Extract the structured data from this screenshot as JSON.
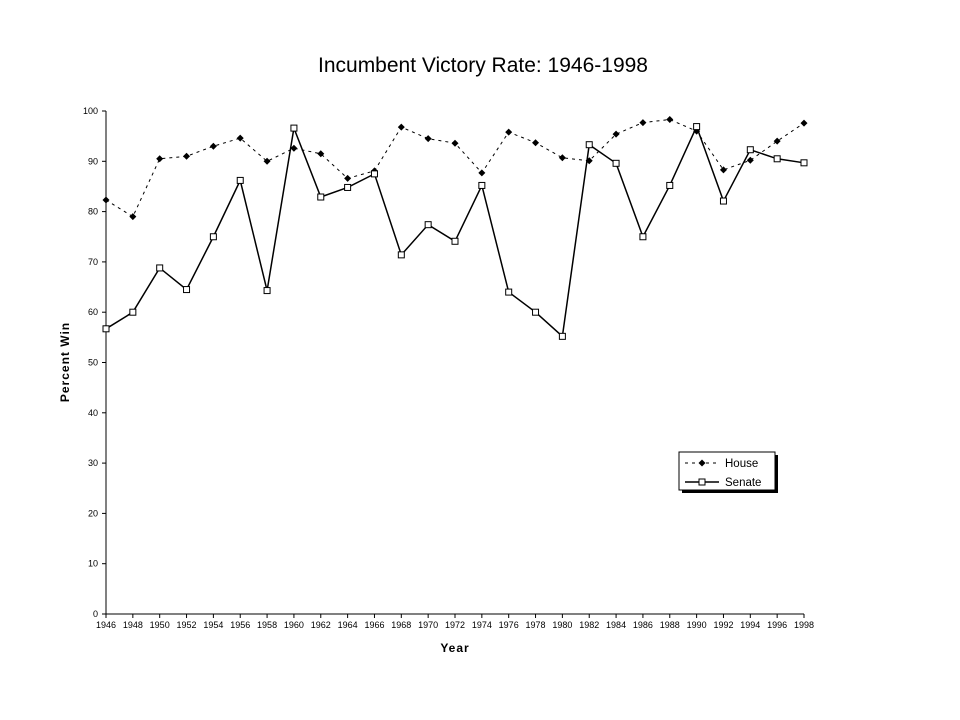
{
  "chart_data": {
    "type": "line",
    "title": "Incumbent Victory Rate: 1946-1998",
    "xlabel": "Year",
    "ylabel": "Percent Win",
    "x": [
      1946,
      1948,
      1950,
      1952,
      1954,
      1956,
      1958,
      1960,
      1962,
      1964,
      1966,
      1968,
      1970,
      1972,
      1974,
      1976,
      1978,
      1980,
      1982,
      1984,
      1986,
      1988,
      1990,
      1992,
      1994,
      1996,
      1998
    ],
    "ylim": [
      0,
      100
    ],
    "yticks": [
      0,
      10,
      20,
      30,
      40,
      50,
      60,
      70,
      80,
      90,
      100
    ],
    "grid": false,
    "legend_position": "bottom-right",
    "series": [
      {
        "name": "House",
        "style": "dashed",
        "marker": "diamond",
        "color": "#000000",
        "values": [
          82.3,
          79.0,
          90.5,
          91.0,
          93.0,
          94.6,
          90.0,
          92.6,
          91.5,
          86.6,
          88.1,
          96.8,
          94.5,
          93.6,
          87.7,
          95.8,
          93.7,
          90.7,
          90.1,
          95.4,
          97.7,
          98.3,
          96.0,
          88.3,
          90.2,
          94.0,
          97.6
        ]
      },
      {
        "name": "Senate",
        "style": "solid",
        "marker": "square",
        "color": "#000000",
        "values": [
          56.7,
          60.0,
          68.8,
          64.5,
          75.0,
          86.2,
          64.3,
          96.6,
          82.9,
          84.8,
          87.5,
          71.4,
          77.4,
          74.1,
          85.2,
          64.0,
          60.0,
          55.2,
          93.3,
          89.6,
          75.0,
          85.2,
          96.9,
          82.1,
          92.3,
          90.5,
          89.7
        ]
      }
    ]
  }
}
